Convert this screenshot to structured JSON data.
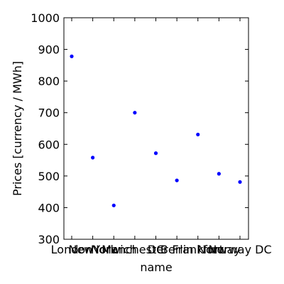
{
  "chart_data": {
    "type": "scatter",
    "title": "",
    "xlabel": "name",
    "ylabel": "Prices [currency / MWh]",
    "categories": [
      "London",
      "NewYork",
      "Norwich",
      "Manchester",
      "DC",
      "Berlin",
      "Frankfurt",
      "Norway",
      "Norway DC"
    ],
    "values": [
      878,
      558,
      407,
      700,
      572,
      486,
      631,
      507,
      481
    ],
    "ylim": [
      300,
      1000
    ],
    "yticks": [
      300,
      400,
      500,
      600,
      700,
      800,
      900,
      1000
    ],
    "grid": false,
    "legend": "none",
    "marker_color": "#0000ff"
  }
}
